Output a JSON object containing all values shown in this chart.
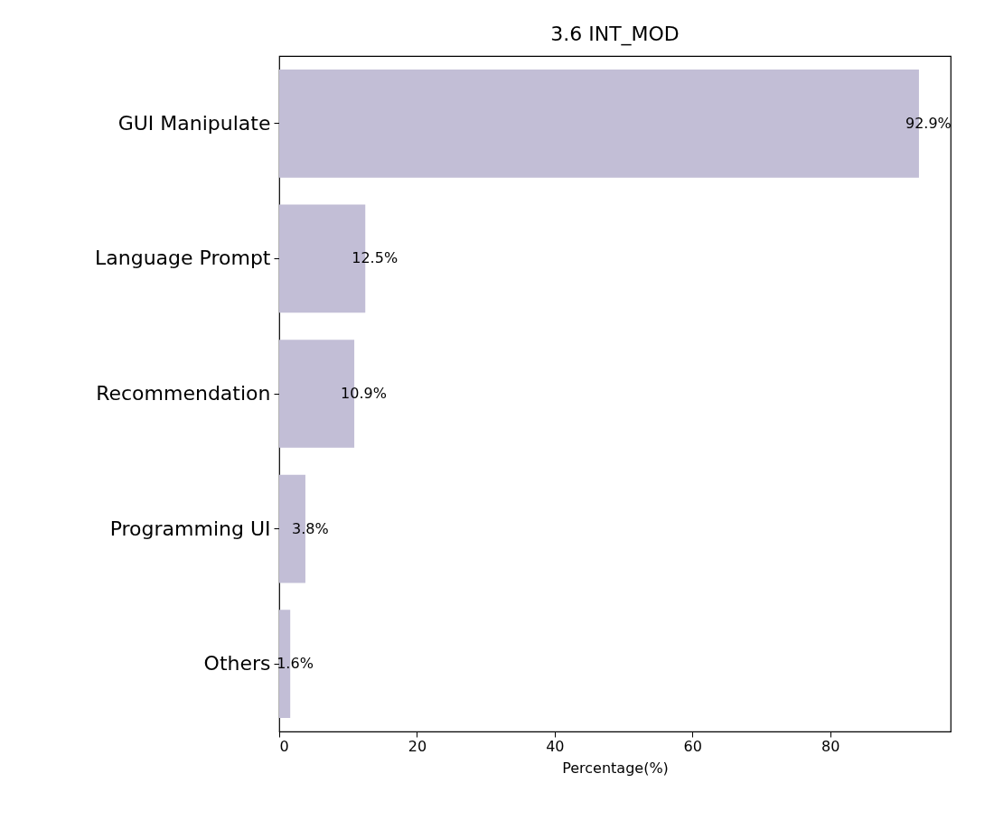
{
  "chart_data": {
    "type": "bar",
    "orientation": "horizontal",
    "title": "3.6 INT_MOD",
    "xlabel": "Percentage(%)",
    "categories": [
      "GUI Manipulate",
      "Language Prompt",
      "Recommendation",
      "Programming UI",
      "Others"
    ],
    "values": [
      92.9,
      12.5,
      10.9,
      3.8,
      1.6
    ],
    "value_labels": [
      "92.9%",
      "12.5%",
      "10.9%",
      "3.8%",
      "1.6%"
    ],
    "color": "#c2bed6",
    "xlim": [
      0,
      97.5
    ],
    "xticks": [
      0,
      20,
      40,
      60,
      80
    ],
    "grid": false
  }
}
